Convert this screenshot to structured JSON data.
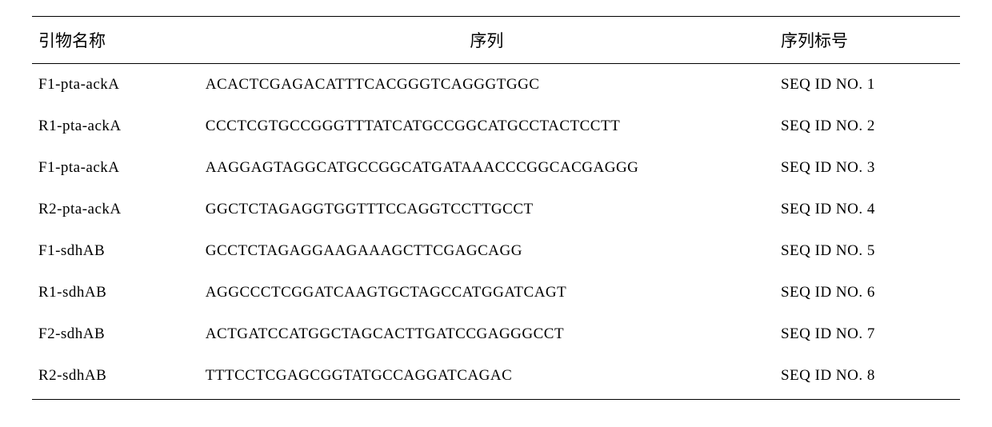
{
  "table": {
    "columns": [
      "引物名称",
      "序列",
      "序列标号"
    ],
    "col_align": [
      "left",
      "center",
      "left"
    ],
    "col_widths_pct": [
      18,
      62,
      20
    ],
    "border_color": "#000000",
    "background_color": "#ffffff",
    "text_color": "#000000",
    "header_fontsize": 21,
    "cell_fontsize": 19,
    "font_family": "Times New Roman / SimSun",
    "rows": [
      {
        "name": "F1-pta-ackA",
        "seq": "ACACTCGAGACATTTCACGGGTCAGGGTGGC",
        "id": "SEQ ID NO. 1"
      },
      {
        "name": "R1-pta-ackA",
        "seq": "CCCTCGTGCCGGGTTTATCATGCCGGCATGCCTACTCCTT",
        "id": "SEQ ID NO. 2"
      },
      {
        "name": "F1-pta-ackA",
        "seq": "AAGGAGTAGGCATGCCGGCATGATAAACCCGGCACGAGGG",
        "id": "SEQ ID NO. 3"
      },
      {
        "name": "R2-pta-ackA",
        "seq": "GGCTCTAGAGGTGGTTTCCAGGTCCTTGCCT",
        "id": "SEQ ID NO. 4"
      },
      {
        "name": "F1-sdhAB",
        "seq": "GCCTCTAGAGGAAGAAAGCTTCGAGCAGG",
        "id": "SEQ ID NO. 5"
      },
      {
        "name": "R1-sdhAB",
        "seq": "AGGCCCTCGGATCAAGTGCTAGCCATGGATCAGT",
        "id": "SEQ ID NO. 6"
      },
      {
        "name": "F2-sdhAB",
        "seq": "ACTGATCCATGGCTAGCACTTGATCCGAGGGCCT",
        "id": "SEQ ID NO. 7"
      },
      {
        "name": "R2-sdhAB",
        "seq": "TTTCCTCGAGCGGTATGCCAGGATCAGAC",
        "id": "SEQ ID NO. 8"
      }
    ]
  }
}
